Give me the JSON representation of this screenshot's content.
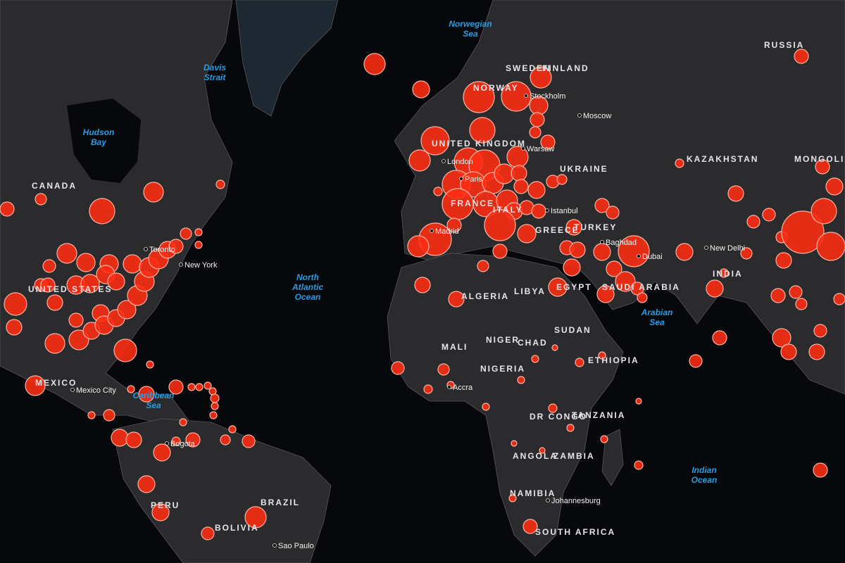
{
  "map": {
    "bubble_color": "#ff2d12",
    "land_color": "#2b2b2d",
    "ocean_color": "#07080b",
    "water_label_color": "#2a9be0",
    "water_labels": [
      "Norwegian Sea",
      "Davis Strait",
      "Hudson Bay",
      "Caribbean Sea",
      "North Atlantic Ocean",
      "Arabian Sea",
      "Indian Ocean"
    ],
    "country_labels": [
      "CANADA",
      "UNITED STATES",
      "SWEDEN",
      "FINLAND",
      "NORWAY",
      "RUSSIA",
      "UNITED KINGDOM",
      "UKRAINE",
      "FRANCE",
      "ITALY",
      "GREECE",
      "TURKEY",
      "KAZAKHSTAN",
      "MONGOLIA",
      "INDIA",
      "SAUDI ARABIA",
      "ALGERIA",
      "LIBYA",
      "EGYPT",
      "MALI",
      "NIGER",
      "CHAD",
      "SUDAN",
      "ETHIOPIA",
      "NIGERIA",
      "DR CONGO",
      "TANZANIA",
      "ANGOLA",
      "ZAMBIA",
      "NAMIBIA",
      "SOUTH AFRICA",
      "PERU",
      "BRAZIL",
      "BOLIVIA",
      "MEXICO"
    ],
    "city_labels": [
      "New York",
      "Toronto",
      "Mexico City",
      "Stockholm",
      "Moscow",
      "London",
      "Warsaw",
      "Paris",
      "Madrid",
      "Istanbul",
      "Baghdad",
      "New Delhi",
      "Dubai",
      "Accra",
      "Johannesburg",
      "Bogota",
      "Sao Paulo"
    ]
  }
}
